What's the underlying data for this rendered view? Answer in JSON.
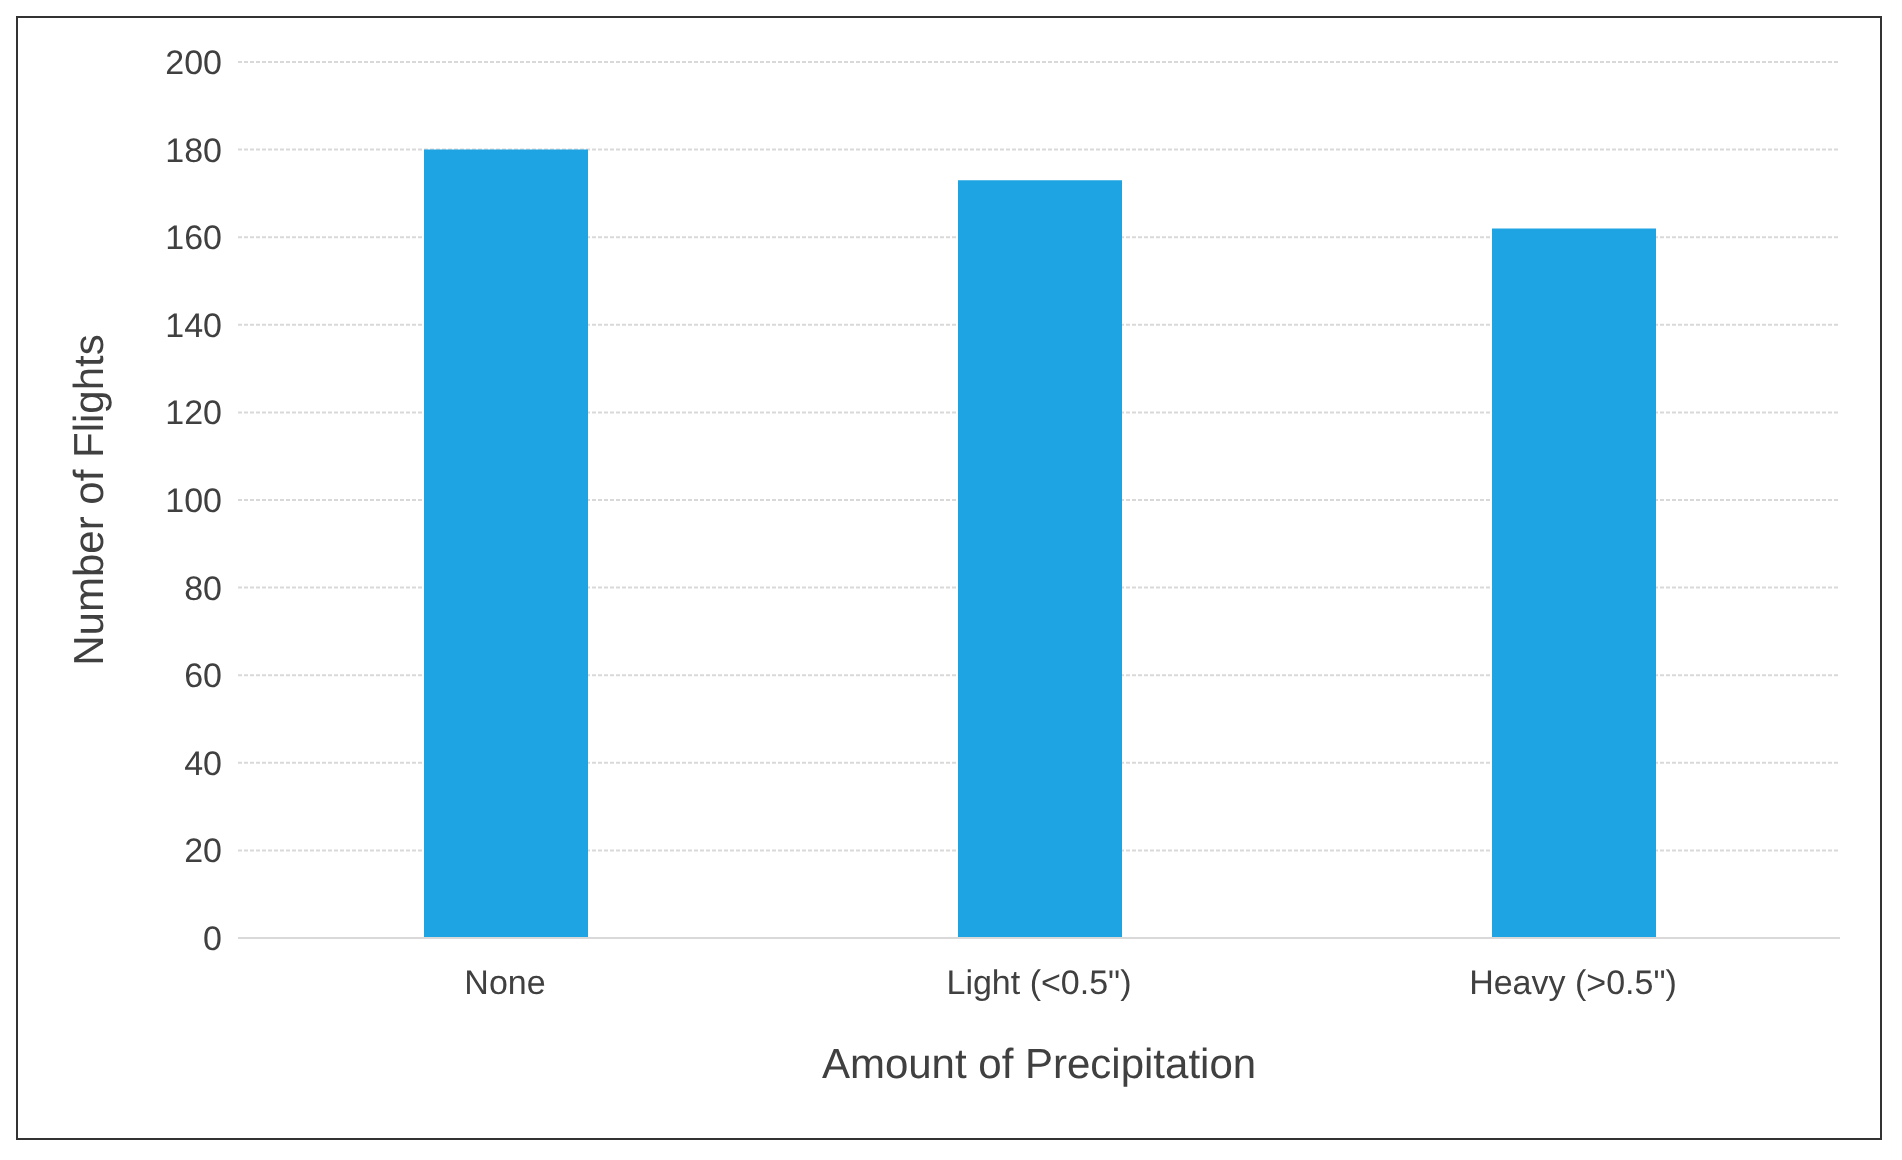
{
  "chart_data": {
    "type": "bar",
    "xlabel": "Amount of Precipitation",
    "ylabel": "Number of Flights",
    "categories": [
      "None",
      "Light (<0.5\")",
      "Heavy (>0.5\")"
    ],
    "values": [
      180,
      173,
      162
    ],
    "color": "#1ea4e2",
    "ylim": [
      0,
      200
    ],
    "yticks": [
      0,
      20,
      40,
      60,
      80,
      100,
      120,
      140,
      160,
      180,
      200
    ],
    "grid": "y"
  }
}
